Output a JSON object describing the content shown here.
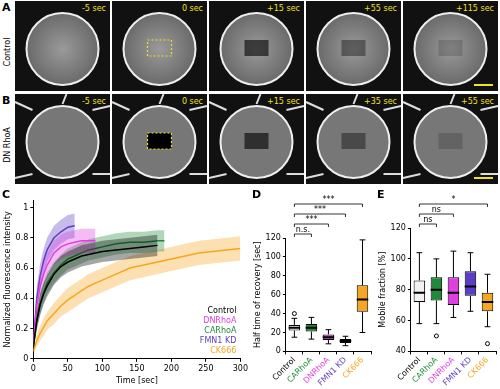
{
  "panels": [
    {
      "label": "A",
      "row_title": "Control",
      "times": [
        "-5 sec",
        "0 sec",
        "+15 sec",
        "+55 sec",
        "+115 sec"
      ]
    },
    {
      "label": "B",
      "row_title": "DN RhoA",
      "times": [
        "-5 sec",
        "0 sec",
        "+15 sec",
        "+35 sec",
        "+55 sec"
      ]
    }
  ],
  "chart_data": [
    {
      "panel": "C",
      "type": "line",
      "x_label": "Time [sec]",
      "y_label": "Normalized fluorescence intensity",
      "x": [
        0,
        5,
        10,
        15,
        20,
        30,
        40,
        50,
        60,
        70,
        80,
        90,
        100,
        120,
        140,
        160,
        180,
        190,
        200,
        220,
        240,
        260,
        280,
        300
      ],
      "series": [
        {
          "name": "Control",
          "color": "#000000",
          "values": [
            0.08,
            0.25,
            0.36,
            0.43,
            0.48,
            0.56,
            0.61,
            0.64,
            0.66,
            0.68,
            0.69,
            0.7,
            0.71,
            0.72,
            0.73,
            0.74,
            0.75,
            null,
            null,
            null,
            null,
            null,
            null,
            null
          ],
          "error": [
            0.03,
            0.06,
            0.07,
            0.07,
            0.07,
            0.07,
            0.07,
            0.07,
            0.07,
            0.07,
            0.07,
            0.07,
            0.07,
            0.07,
            0.07,
            0.07,
            0.07,
            null,
            null,
            null,
            null,
            null,
            null,
            null
          ]
        },
        {
          "name": "DNRhoA",
          "color": "#e040e0",
          "values": [
            0.1,
            0.35,
            0.48,
            0.56,
            0.62,
            0.7,
            0.74,
            0.76,
            0.77,
            0.78,
            0.78,
            0.78,
            null,
            null,
            null,
            null,
            null,
            null,
            null,
            null,
            null,
            null,
            null,
            null
          ],
          "error": [
            0.03,
            0.07,
            0.08,
            0.08,
            0.08,
            0.08,
            0.08,
            0.08,
            0.08,
            0.08,
            0.08,
            0.08,
            null,
            null,
            null,
            null,
            null,
            null,
            null,
            null,
            null,
            null,
            null,
            null
          ]
        },
        {
          "name": "CARhoA",
          "color": "#1f8a3a",
          "values": [
            0.08,
            0.26,
            0.37,
            0.44,
            0.5,
            0.57,
            0.62,
            0.66,
            0.68,
            0.7,
            0.72,
            0.73,
            0.74,
            0.76,
            0.77,
            0.77,
            0.78,
            0.78,
            null,
            null,
            null,
            null,
            null,
            null
          ],
          "error": [
            0.03,
            0.06,
            0.07,
            0.07,
            0.07,
            0.07,
            0.07,
            0.07,
            0.07,
            0.07,
            0.07,
            0.07,
            0.07,
            0.07,
            0.07,
            0.07,
            0.07,
            0.07,
            null,
            null,
            null,
            null,
            null,
            null
          ]
        },
        {
          "name": "FMN1 KD",
          "color": "#5b3cc4",
          "values": [
            0.1,
            0.4,
            0.55,
            0.65,
            0.72,
            0.8,
            0.84,
            0.87,
            0.88,
            null,
            null,
            null,
            null,
            null,
            null,
            null,
            null,
            null,
            null,
            null,
            null,
            null,
            null,
            null
          ],
          "error": [
            0.03,
            0.08,
            0.08,
            0.08,
            0.08,
            0.08,
            0.08,
            0.08,
            0.08,
            null,
            null,
            null,
            null,
            null,
            null,
            null,
            null,
            null,
            null,
            null,
            null,
            null,
            null,
            null
          ]
        },
        {
          "name": "CK666",
          "color": "#f5a623",
          "values": [
            0.05,
            0.12,
            0.17,
            0.21,
            0.25,
            0.3,
            0.35,
            0.39,
            0.42,
            0.45,
            0.48,
            0.5,
            0.52,
            0.56,
            0.6,
            0.62,
            0.64,
            0.65,
            0.66,
            0.68,
            0.7,
            0.71,
            0.72,
            0.73
          ],
          "error": [
            0.02,
            0.04,
            0.05,
            0.06,
            0.06,
            0.07,
            0.07,
            0.08,
            0.08,
            0.08,
            0.08,
            0.08,
            0.08,
            0.08,
            0.08,
            0.08,
            0.08,
            0.08,
            0.08,
            0.08,
            0.08,
            0.08,
            0.08,
            0.08
          ]
        }
      ],
      "xlim": [
        0,
        300
      ],
      "xticks": [
        0,
        50,
        100,
        150,
        200,
        250,
        300
      ],
      "ylim": [
        0,
        1.05
      ],
      "yticks": [
        0,
        0.2,
        0.4,
        0.6,
        0.8,
        1
      ],
      "grid": false,
      "legend": "lower right"
    },
    {
      "panel": "D",
      "type": "box",
      "y_label": "Half time of recovery [sec]",
      "categories": [
        "Control",
        "CARhoA",
        "DNRhoA",
        "FMN1 KD",
        "CK666"
      ],
      "boxes": [
        {
          "min": 15,
          "q1": 22,
          "median": 25,
          "q3": 28,
          "max": 35,
          "outliers": [
            40
          ]
        },
        {
          "min": 13,
          "q1": 21,
          "median": 25,
          "q3": 29,
          "max": 36,
          "outliers": []
        },
        {
          "min": 8,
          "q1": 12,
          "median": 15,
          "q3": 18,
          "max": 23,
          "outliers": []
        },
        {
          "min": 6,
          "q1": 9,
          "median": 11,
          "q3": 13,
          "max": 16,
          "outliers": []
        },
        {
          "min": 20,
          "q1": 42,
          "median": 55,
          "q3": 70,
          "max": 118,
          "outliers": []
        }
      ],
      "colors": [
        "#f2f2f2",
        "#1f8a3a",
        "#e040e0",
        "#5b3cc4",
        "#f5a623"
      ],
      "ylim": [
        0,
        120
      ],
      "yticks": [
        0,
        20,
        40,
        60,
        80,
        100,
        120
      ],
      "grid": false,
      "comparisons": [
        {
          "from": "Control",
          "to": "CARhoA",
          "label": "n.s."
        },
        {
          "from": "Control",
          "to": "DNRhoA",
          "label": "***"
        },
        {
          "from": "Control",
          "to": "FMN1 KD",
          "label": "***"
        },
        {
          "from": "Control",
          "to": "CK666",
          "label": "***"
        }
      ]
    },
    {
      "panel": "E",
      "type": "box",
      "y_label": "Mobile fraction [%]",
      "categories": [
        "Control",
        "CARhoA",
        "DNRhoA",
        "FMN1 KD",
        "CK666"
      ],
      "boxes": [
        {
          "min": 58,
          "q1": 72,
          "median": 78,
          "q3": 86,
          "max": 104,
          "outliers": []
        },
        {
          "min": 58,
          "q1": 73,
          "median": 80,
          "q3": 88,
          "max": 100,
          "outliers": [
            50
          ]
        },
        {
          "min": 62,
          "q1": 70,
          "median": 78,
          "q3": 88,
          "max": 105,
          "outliers": []
        },
        {
          "min": 66,
          "q1": 76,
          "median": 82,
          "q3": 92,
          "max": 104,
          "outliers": []
        },
        {
          "min": 56,
          "q1": 66,
          "median": 72,
          "q3": 78,
          "max": 90,
          "outliers": [
            45
          ]
        }
      ],
      "colors": [
        "#f2f2f2",
        "#1f8a3a",
        "#e040e0",
        "#5b3cc4",
        "#f5a623"
      ],
      "ylim": [
        40,
        120
      ],
      "yticks": [
        40,
        60,
        80,
        100,
        120
      ],
      "grid": false,
      "comparisons": [
        {
          "from": "Control",
          "to": "CARhoA",
          "label": "ns"
        },
        {
          "from": "Control",
          "to": "DNRhoA",
          "label": "ns"
        },
        {
          "from": "Control",
          "to": "CK666",
          "label": "*"
        }
      ]
    }
  ]
}
